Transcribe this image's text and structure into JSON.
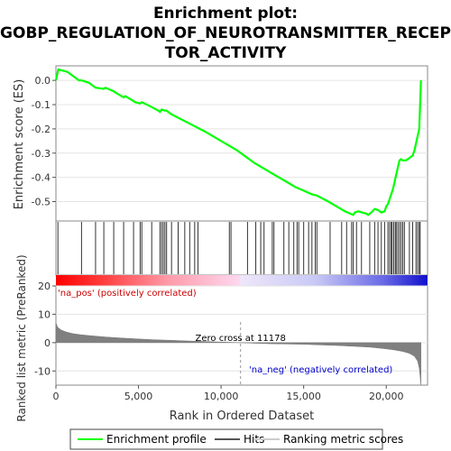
{
  "chart_data": {
    "type": "line",
    "title_lines": [
      "Enrichment plot:",
      "GOBP_REGULATION_OF_NEUROTRANSMITTER_RECEP",
      "TOR_ACTIVITY"
    ],
    "top_panel": {
      "ylabel": "Enrichment score (ES)",
      "ylim": [
        -0.58,
        0.06
      ],
      "yticks": [
        0.0,
        -0.1,
        -0.2,
        -0.3,
        -0.4,
        -0.5
      ],
      "ytick_labels": [
        "0.0",
        "-0.1",
        "-0.2",
        "-0.3",
        "-0.4",
        "-0.5"
      ],
      "series": [
        {
          "name": "Enrichment profile",
          "color": "#00ff00",
          "x": [
            0,
            150,
            700,
            1400,
            1550,
            2000,
            2400,
            2900,
            3000,
            3500,
            3600,
            4100,
            4200,
            4700,
            4800,
            5100,
            5200,
            5800,
            6200,
            6300,
            6400,
            6600,
            6700,
            7000,
            8000,
            9000,
            10000,
            10500,
            11000,
            12000,
            13000,
            14000,
            14500,
            15000,
            15500,
            15800,
            16500,
            17500,
            18000,
            18100,
            18300,
            18800,
            18900,
            19100,
            19300,
            19500,
            19700,
            19900,
            20000,
            20100,
            20200,
            20300,
            20400,
            20500,
            20600,
            20700,
            20800,
            20900,
            21000,
            21200,
            21400,
            21600,
            21700,
            21800,
            22000,
            22100
          ],
          "y": [
            0.0,
            0.045,
            0.035,
            0.0,
            0.0,
            -0.01,
            -0.03,
            -0.035,
            -0.03,
            -0.045,
            -0.05,
            -0.07,
            -0.065,
            -0.085,
            -0.09,
            -0.095,
            -0.09,
            -0.11,
            -0.125,
            -0.13,
            -0.12,
            -0.125,
            -0.125,
            -0.14,
            -0.175,
            -0.21,
            -0.25,
            -0.27,
            -0.29,
            -0.34,
            -0.38,
            -0.42,
            -0.44,
            -0.455,
            -0.47,
            -0.475,
            -0.5,
            -0.54,
            -0.555,
            -0.545,
            -0.54,
            -0.55,
            -0.555,
            -0.545,
            -0.53,
            -0.535,
            -0.545,
            -0.54,
            -0.52,
            -0.51,
            -0.49,
            -0.47,
            -0.45,
            -0.42,
            -0.39,
            -0.36,
            -0.33,
            -0.325,
            -0.33,
            -0.33,
            -0.32,
            -0.31,
            -0.29,
            -0.26,
            -0.2,
            0.0
          ]
        }
      ]
    },
    "hits_panel": {
      "series_name": "Hits",
      "positions": [
        120,
        1550,
        2400,
        2900,
        3500,
        4100,
        4700,
        5100,
        5200,
        5800,
        6300,
        6400,
        6500,
        6600,
        6700,
        7000,
        7400,
        7800,
        8100,
        8400,
        8600,
        10500,
        10600,
        11600,
        12100,
        12400,
        12600,
        13100,
        13200,
        13800,
        14100,
        14400,
        14600,
        14700,
        15000,
        15300,
        15500,
        15700,
        15800,
        16600,
        17300,
        17600,
        17900,
        18000,
        18200,
        18500,
        19000,
        19300,
        19500,
        19700,
        19900,
        20100,
        20200,
        20300,
        20350,
        20450,
        20550,
        20600,
        20700,
        20800,
        20900,
        21000,
        21100,
        21400,
        21600,
        21800,
        21900,
        22000,
        22050
      ]
    },
    "color_bar": {
      "series_name": "Ranking metric scores"
    },
    "bottom_panel": {
      "ylabel": "Ranked list metric (PreRanked)",
      "xlabel": "Rank in Ordered Dataset",
      "ylim": [
        -15,
        20
      ],
      "yticks": [
        20,
        10,
        0,
        -10
      ],
      "ytick_labels": [
        "20",
        "10",
        "0",
        "-10"
      ],
      "xlim": [
        0,
        22500
      ],
      "xticks": [
        0,
        5000,
        10000,
        15000,
        20000
      ],
      "xtick_labels": [
        "0",
        "5,000",
        "10,000",
        "15,000",
        "20,000"
      ],
      "series": [
        {
          "name": "Ranking metric scores",
          "color": "#808080",
          "x": [
            0,
            100,
            300,
            600,
            1000,
            1500,
            2000,
            3000,
            4000,
            5000,
            6000,
            7000,
            8000,
            9000,
            10000,
            11178,
            12000,
            13000,
            14000,
            15000,
            16000,
            17000,
            18000,
            19000,
            19500,
            20000,
            20500,
            21000,
            21400,
            21700,
            21900,
            22000,
            22050,
            22100
          ],
          "y": [
            7.0,
            5.5,
            4.5,
            3.8,
            3.2,
            2.8,
            2.5,
            2.0,
            1.6,
            1.3,
            1.0,
            0.8,
            0.6,
            0.4,
            0.2,
            0.0,
            -0.2,
            -0.4,
            -0.5,
            -0.6,
            -0.8,
            -1.0,
            -1.3,
            -1.6,
            -1.9,
            -2.2,
            -2.6,
            -3.1,
            -3.8,
            -4.8,
            -6.5,
            -9.0,
            -12.0,
            -15.0
          ]
        }
      ],
      "zero_cross": 11178,
      "zero_cross_label": "Zero cross at 11178",
      "pos_label": "'na_pos' (positively correlated)",
      "neg_label": "'na_neg' (negatively correlated)"
    },
    "legend": {
      "placement": "bottom",
      "items": [
        {
          "label": "Enrichment profile",
          "color": "#00ff00"
        },
        {
          "label": "Hits",
          "color": "#555555"
        },
        {
          "label": "Ranking metric scores",
          "color": "#cccccc"
        }
      ]
    }
  }
}
